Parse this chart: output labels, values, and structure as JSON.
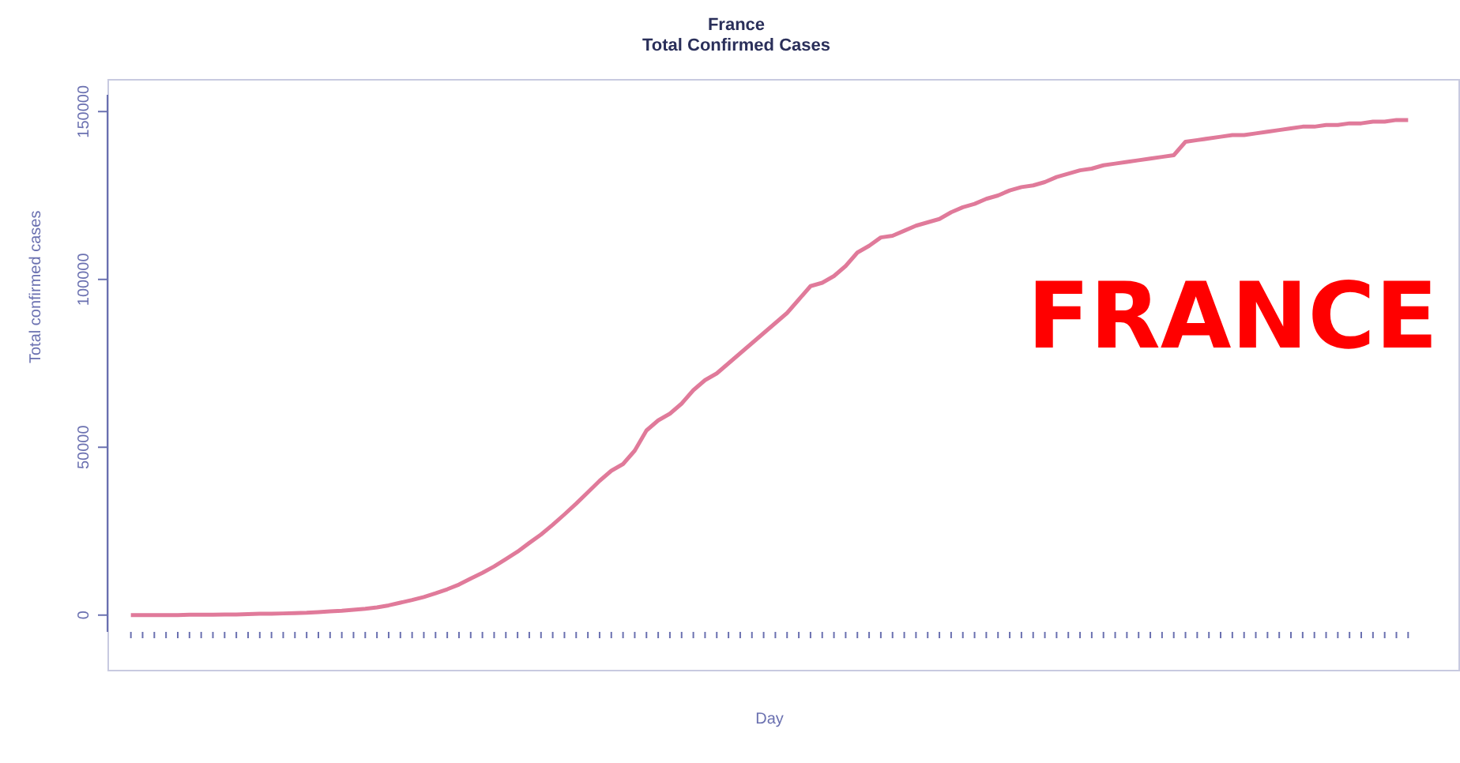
{
  "chart_data": {
    "type": "line",
    "title": "France",
    "subtitle": "Total Confirmed Cases",
    "xlabel": "Day",
    "ylabel": "Total confirmed cases",
    "annotations": [
      "FRANCE"
    ],
    "categories": [
      null,
      null,
      null,
      null,
      null,
      null,
      null,
      null,
      null,
      null,
      null,
      null,
      null,
      null,
      null,
      null,
      null,
      null,
      null,
      null,
      null,
      null,
      null,
      null,
      null,
      null,
      null,
      null,
      null,
      null,
      null,
      null,
      null,
      null,
      null,
      null,
      null,
      null,
      null,
      null,
      null,
      null,
      null,
      null,
      null,
      null,
      null,
      null,
      null,
      null,
      null,
      null,
      null,
      null,
      null,
      null,
      null,
      null,
      null,
      null,
      null,
      null,
      null,
      null,
      null,
      null,
      null,
      null,
      null,
      null,
      null,
      null,
      null,
      null,
      null,
      null,
      null,
      null,
      null,
      null,
      null,
      null,
      null,
      null,
      null,
      null,
      null,
      null,
      null,
      null,
      null,
      null,
      null,
      null,
      null,
      null,
      null,
      null,
      null,
      null,
      null,
      null,
      null,
      null,
      null,
      null,
      null,
      null,
      null,
      null
    ],
    "series": [
      {
        "color": "#e07a9a",
        "values": [
          0,
          0,
          0,
          0,
          0,
          100,
          100,
          100,
          200,
          200,
          300,
          400,
          400,
          500,
          600,
          700,
          900,
          1100,
          1300,
          1600,
          1900,
          2300,
          2900,
          3700,
          4500,
          5400,
          6500,
          7700,
          9100,
          10900,
          12600,
          14500,
          16700,
          18900,
          21500,
          24000,
          26900,
          30000,
          33200,
          36600,
          40000,
          43000,
          45000,
          49000,
          55000,
          58000,
          60000,
          63000,
          67000,
          70000,
          72000,
          75000,
          78000,
          81000,
          84000,
          87000,
          90000,
          94000,
          98000,
          99000,
          101000,
          104000,
          108000,
          110000,
          112500,
          113000,
          114500,
          116000,
          117000,
          118000,
          120000,
          121500,
          122500,
          124000,
          125000,
          126500,
          127500,
          128000,
          129000,
          130500,
          131500,
          132500,
          133000,
          134000,
          134500,
          135000,
          135500,
          136000,
          136500,
          137000,
          141000,
          141500,
          142000,
          142500,
          143000,
          143000,
          143500,
          144000,
          144500,
          145000,
          145500,
          145500,
          146000,
          146000,
          146500,
          146500,
          147000,
          147000,
          147500,
          147500
        ]
      }
    ],
    "ylim": [
      -5000,
      155000
    ],
    "yticks": [
      0,
      50000,
      100000,
      150000
    ],
    "marker": "none",
    "line_style": "solid"
  }
}
